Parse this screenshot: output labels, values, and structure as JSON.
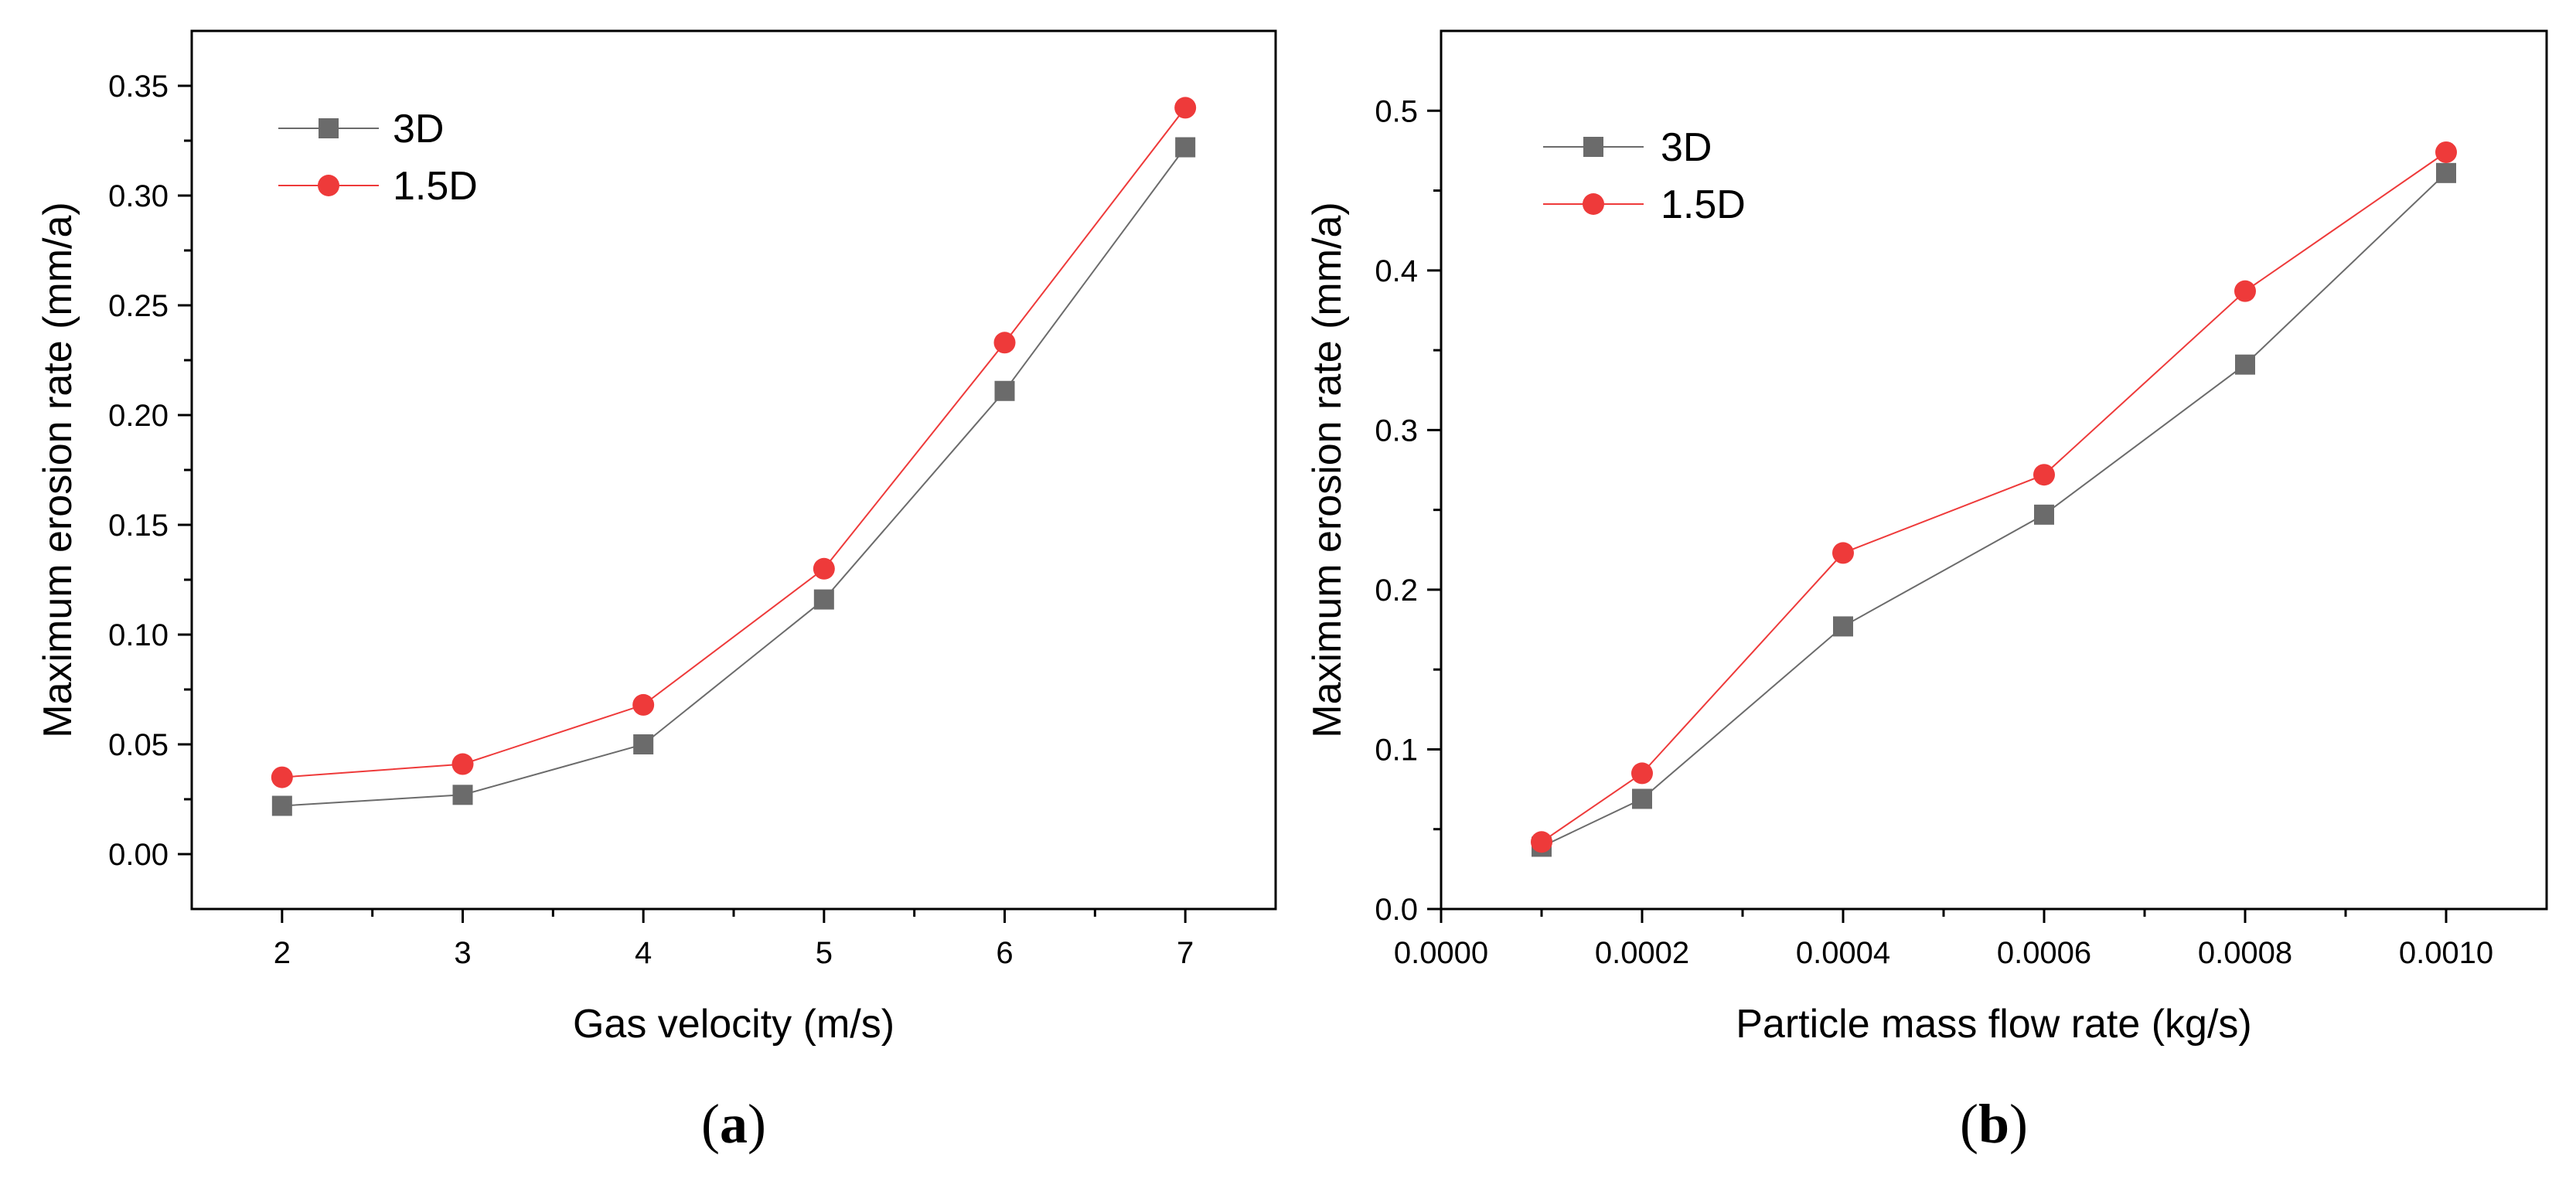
{
  "chart_data": [
    {
      "type": "line",
      "caption_letter": "a",
      "xlabel": "Gas velocity (m/s)",
      "ylabel": "Maximum erosion rate (mm/a)",
      "xlim": [
        1.5,
        7.5
      ],
      "ylim": [
        -0.025,
        0.375
      ],
      "xticks": [
        2,
        3,
        4,
        5,
        6,
        7
      ],
      "xtick_labels": [
        "2",
        "3",
        "4",
        "5",
        "6",
        "7"
      ],
      "yticks": [
        0,
        0.05,
        0.1,
        0.15,
        0.2,
        0.25,
        0.3,
        0.35
      ],
      "ytick_labels": [
        "0.00",
        "0.05",
        "0.10",
        "0.15",
        "0.20",
        "0.25",
        "0.30",
        "0.35"
      ],
      "legend_position": "top-left",
      "x": [
        2,
        3,
        4,
        5,
        6,
        7
      ],
      "series": [
        {
          "name": "3D",
          "marker": "square",
          "color": "#6b6b6b",
          "values": [
            0.022,
            0.027,
            0.05,
            0.116,
            0.211,
            0.322
          ]
        },
        {
          "name": "1.5D",
          "marker": "circle",
          "color": "#ee3a3a",
          "values": [
            0.035,
            0.041,
            0.068,
            0.13,
            0.233,
            0.34
          ]
        }
      ]
    },
    {
      "type": "line",
      "caption_letter": "b",
      "xlabel": "Particle mass flow rate (kg/s)",
      "ylabel": "Maximum erosion rate (mm/a)",
      "xlim": [
        0,
        0.0011
      ],
      "ylim": [
        0,
        0.55
      ],
      "xticks": [
        0,
        0.0002,
        0.0004,
        0.0006,
        0.0008,
        0.001
      ],
      "xtick_labels": [
        "0.0000",
        "0.0002",
        "0.0004",
        "0.0006",
        "0.0008",
        "0.0010"
      ],
      "yticks": [
        0,
        0.1,
        0.2,
        0.3,
        0.4,
        0.5
      ],
      "ytick_labels": [
        "0.0",
        "0.1",
        "0.2",
        "0.3",
        "0.4",
        "0.5"
      ],
      "legend_position": "top-left",
      "x": [
        0.0001,
        0.0002,
        0.0004,
        0.0006,
        0.0008,
        0.001
      ],
      "series": [
        {
          "name": "3D",
          "marker": "square",
          "color": "#6b6b6b",
          "values": [
            0.039,
            0.069,
            0.177,
            0.247,
            0.341,
            0.461
          ]
        },
        {
          "name": "1.5D",
          "marker": "circle",
          "color": "#ee3a3a",
          "values": [
            0.042,
            0.085,
            0.223,
            0.272,
            0.387,
            0.474
          ]
        }
      ]
    }
  ]
}
